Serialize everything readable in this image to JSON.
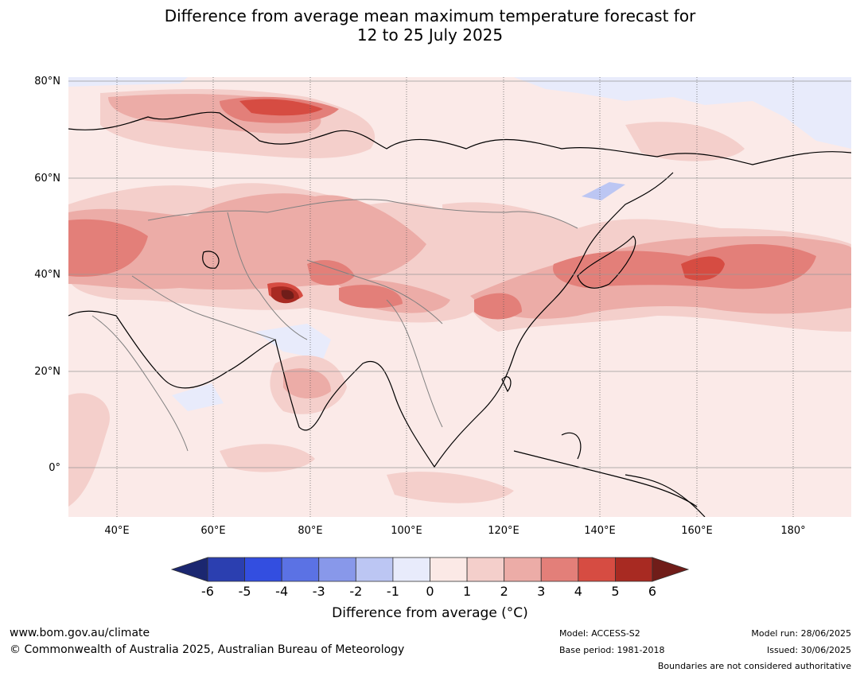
{
  "title_line1": "Difference from average mean maximum temperature forecast for",
  "title_line2": "12 to 25 July 2025",
  "map": {
    "lat_labels": [
      "80°N",
      "60°N",
      "40°N",
      "20°N",
      "0°"
    ],
    "lon_labels": [
      "40°E",
      "60°E",
      "80°E",
      "100°E",
      "120°E",
      "140°E",
      "160°E",
      "180°"
    ]
  },
  "colorbar": {
    "tick_labels": [
      "-6",
      "-5",
      "-4",
      "-3",
      "-2",
      "-1",
      "0",
      "1",
      "2",
      "3",
      "4",
      "5",
      "6"
    ],
    "colors": [
      "#1b2770",
      "#2b3fb0",
      "#334ee0",
      "#5b72e4",
      "#8898ea",
      "#bcc6f3",
      "#e8ebfb",
      "#fbe9e6",
      "#f4cfcb",
      "#ecaca7",
      "#e37f79",
      "#d64c42",
      "#a82a22",
      "#701d19"
    ],
    "label": "Difference from average (°C)"
  },
  "footer": {
    "website": "www.bom.gov.au/climate",
    "copyright": "© Commonwealth of Australia 2025, Australian Bureau of Meteorology",
    "model": "Model: ACCESS-S2",
    "base_period": "Base period: 1981-2018",
    "model_run": "Model run: 28/06/2025",
    "issued": "Issued: 30/06/2025",
    "disclaimer": "Boundaries are not considered authoritative"
  }
}
